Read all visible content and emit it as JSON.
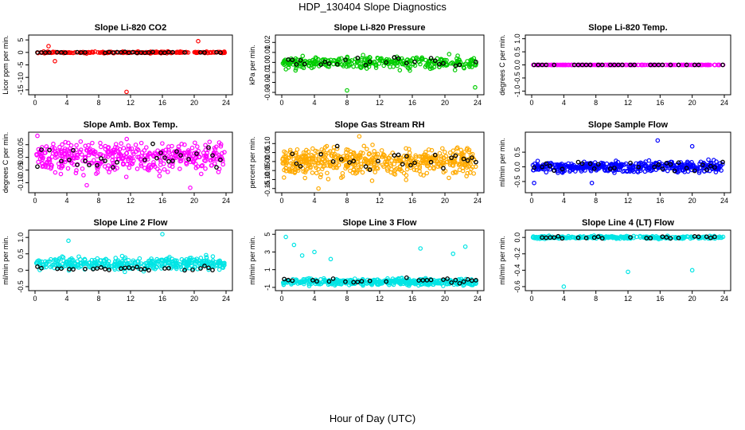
{
  "page": {
    "title": "HDP_130404  Slope Diagnostics",
    "xlabel": "Hour of Day (UTC)"
  },
  "chart_data": [
    {
      "type": "scatter",
      "title": "Slope Li-820 CO2",
      "ylabel": "Licor ppm per min.",
      "xlim": [
        0,
        24
      ],
      "ylim": [
        -16,
        6
      ],
      "xticks": [
        0,
        4,
        8,
        12,
        16,
        20,
        24
      ],
      "yticks": [
        5,
        0,
        -5,
        -10,
        -15
      ],
      "ytick_labels": [
        "5",
        "0",
        "-5",
        "-10",
        "-15"
      ],
      "color": "#ff0000",
      "center": 0,
      "spread": 0.25,
      "n": 220,
      "black_spread": 0.2,
      "outliers": [
        {
          "x": 1.7,
          "y": 2.5
        },
        {
          "x": 2.5,
          "y": -3.5
        },
        {
          "x": 11.5,
          "y": -15.8
        },
        {
          "x": 20.5,
          "y": 4.5
        }
      ]
    },
    {
      "type": "scatter",
      "title": "Slope Li-820 Pressure",
      "ylabel": "kPa per min.",
      "xlim": [
        0,
        24
      ],
      "ylim": [
        -0.03,
        0.025
      ],
      "xticks": [
        0,
        4,
        8,
        12,
        16,
        20,
        24
      ],
      "yticks": [
        0.02,
        0.01,
        0.0,
        -0.01,
        -0.02,
        -0.03
      ],
      "ytick_labels": [
        "0.02",
        "0.01",
        "0.00",
        "-0.01",
        "-0.02",
        "-0.03"
      ],
      "color": "#00cc00",
      "center": 0,
      "spread": 0.005,
      "n": 320,
      "black_spread": 0.004,
      "outliers": [
        {
          "x": 8,
          "y": -0.028
        },
        {
          "x": 23.7,
          "y": -0.025
        }
      ]
    },
    {
      "type": "scatter",
      "title": "Slope Li-820 Temp.",
      "ylabel": "degrees C per min.",
      "xlim": [
        0,
        24
      ],
      "ylim": [
        -1.05,
        1.05
      ],
      "xticks": [
        0,
        4,
        8,
        12,
        16,
        20,
        24
      ],
      "yticks": [
        1.0,
        0.5,
        0.0,
        -0.5,
        -1.0
      ],
      "ytick_labels": [
        "1.0",
        "0.5",
        "0.0",
        "-0.5",
        "-1.0"
      ],
      "color": "#ff00ff",
      "center": 0,
      "spread": 0.0,
      "n": 200,
      "black_spread": 0.0,
      "outliers": []
    },
    {
      "type": "scatter",
      "title": "Slope Amb. Box Temp.",
      "ylabel": "degrees C per min.",
      "xlim": [
        0,
        24
      ],
      "ylim": [
        -0.13,
        0.09
      ],
      "xticks": [
        0,
        4,
        8,
        12,
        16,
        20,
        24
      ],
      "yticks": [
        0.05,
        0.0,
        -0.05,
        -0.1
      ],
      "ytick_labels": [
        "0.05",
        "0.00",
        "-0.05",
        "-0.10"
      ],
      "color": "#ff00ff",
      "center": 0,
      "spread": 0.045,
      "n": 420,
      "black_spread": 0.035,
      "outliers": [
        {
          "x": 0.3,
          "y": 0.085
        },
        {
          "x": 19.5,
          "y": -0.12
        },
        {
          "x": 6.5,
          "y": -0.11
        }
      ]
    },
    {
      "type": "scatter",
      "title": "Slope Gas Stream RH",
      "ylabel": "percent per min.",
      "xlim": [
        0,
        24
      ],
      "ylim": [
        -0.16,
        0.15
      ],
      "xticks": [
        0,
        4,
        8,
        12,
        16,
        20,
        24
      ],
      "yticks": [
        0.1,
        0.05,
        0.0,
        -0.05,
        -0.1,
        -0.15
      ],
      "ytick_labels": [
        "0.10",
        "0.05",
        "0.00",
        "-0.05",
        "-0.10",
        "-0.15"
      ],
      "color": "#ffaa00",
      "center": 0,
      "spread": 0.06,
      "n": 520,
      "black_spread": 0.05,
      "outliers": [
        {
          "x": 4.5,
          "y": -0.15
        },
        {
          "x": 9.5,
          "y": 0.14
        }
      ]
    },
    {
      "type": "scatter",
      "title": "Slope Sample Flow",
      "ylabel": "ml/min per min.",
      "xlim": [
        0,
        24
      ],
      "ylim": [
        -0.8,
        1.1
      ],
      "xticks": [
        0,
        4,
        8,
        12,
        16,
        20,
        24
      ],
      "yticks": [
        0.5,
        0.0,
        -0.5
      ],
      "ytick_labels": [
        "0.5",
        "0.0",
        "-0.5"
      ],
      "color": "#0000ff",
      "center": 0,
      "spread": 0.15,
      "n": 420,
      "black_spread": 0.15,
      "outliers": [
        {
          "x": 15.7,
          "y": 0.9
        },
        {
          "x": 20,
          "y": 0.7
        },
        {
          "x": 0.3,
          "y": -0.55
        },
        {
          "x": 7.5,
          "y": -0.55
        }
      ]
    },
    {
      "type": "scatter",
      "title": "Slope Line 2 Flow",
      "ylabel": "ml/min per min.",
      "xlim": [
        0,
        24
      ],
      "ylim": [
        -0.55,
        1.15
      ],
      "xticks": [
        0,
        4,
        8,
        12,
        16,
        20,
        24
      ],
      "yticks": [
        1.0,
        0.5,
        0.0,
        -0.5
      ],
      "ytick_labels": [
        "1.0",
        "0.5",
        "0",
        "-0.5"
      ],
      "color": "#00e5e5",
      "center": 0.2,
      "spread": 0.15,
      "n": 380,
      "black_spread": 0.07,
      "black_center": 0.05,
      "outliers": [
        {
          "x": 4.2,
          "y": 0.9
        },
        {
          "x": 16,
          "y": 1.1
        }
      ]
    },
    {
      "type": "scatter",
      "title": "Slope Line 3 Flow",
      "ylabel": "ml/min per min.",
      "xlim": [
        0,
        24
      ],
      "ylim": [
        -1.1,
        5.2
      ],
      "xticks": [
        0,
        4,
        8,
        12,
        16,
        20,
        24
      ],
      "yticks": [
        5,
        3,
        1,
        -1
      ],
      "ytick_labels": [
        "5",
        "3",
        "1",
        "-1"
      ],
      "color": "#00e5e5",
      "center": -0.4,
      "spread": 0.3,
      "n": 420,
      "black_spread": 0.2,
      "black_center": -0.2,
      "outliers": [
        {
          "x": 0.5,
          "y": 4.7
        },
        {
          "x": 1.5,
          "y": 3.8
        },
        {
          "x": 2.5,
          "y": 2.6
        },
        {
          "x": 4,
          "y": 3.0
        },
        {
          "x": 6,
          "y": 2.2
        },
        {
          "x": 17,
          "y": 3.4
        },
        {
          "x": 21,
          "y": 2.8
        },
        {
          "x": 22.5,
          "y": 3.6
        }
      ]
    },
    {
      "type": "scatter",
      "title": "Slope Line 4 (LT) Flow",
      "ylabel": "ml/min per min.",
      "xlim": [
        0,
        24
      ],
      "ylim": [
        -0.62,
        0.06
      ],
      "xticks": [
        0,
        4,
        8,
        12,
        16,
        20,
        24
      ],
      "yticks": [
        0.0,
        -0.2,
        -0.4,
        -0.6
      ],
      "ytick_labels": [
        "0.0",
        "-0.2",
        "-0.4",
        "-0.6"
      ],
      "color": "#00e5e5",
      "center": 0,
      "spread": 0.015,
      "n": 260,
      "black_spread": 0.012,
      "outliers": [
        {
          "x": 4,
          "y": -0.6
        },
        {
          "x": 12,
          "y": -0.42
        },
        {
          "x": 20,
          "y": -0.4
        }
      ]
    }
  ]
}
